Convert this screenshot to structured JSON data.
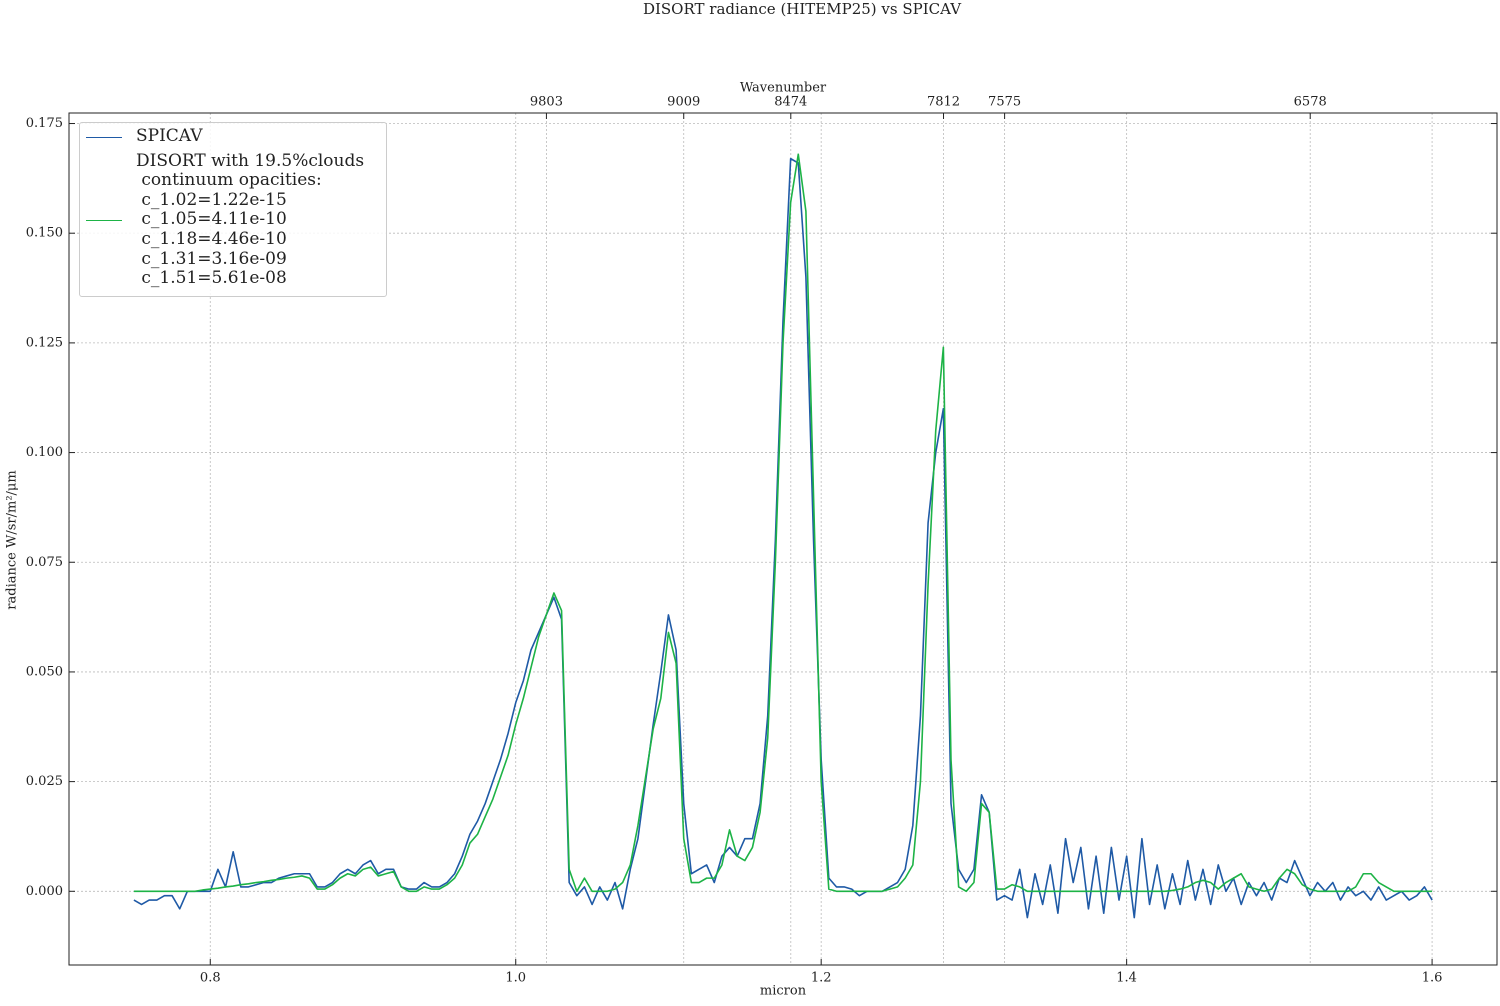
{
  "chart_data": {
    "type": "line",
    "title": "DISORT radiance (HITEMP25) vs SPICAV",
    "xlabel": "micron",
    "ylabel": "radiance W/sr/m²/μm",
    "x2label": "Wavenumber",
    "xlim": [
      0.7075,
      1.6425
    ],
    "ylim": [
      -0.0168,
      0.1774
    ],
    "xticks": [
      0.8,
      {
        "value": 1.0,
        "label": "1.0"
      },
      1.2,
      1.4,
      1.6
    ],
    "x2ticks": [
      {
        "value": 1.0201,
        "label": "9803"
      },
      {
        "value": 1.11,
        "label": "9009"
      },
      {
        "value": 1.1801,
        "label": "8474"
      },
      {
        "value": 1.2801,
        "label": "7812"
      },
      {
        "value": 1.3201,
        "label": "7575"
      },
      {
        "value": 1.5202,
        "label": "6578"
      }
    ],
    "yticks": [
      {
        "value": 0,
        "label": "0.000"
      },
      {
        "value": 0.025,
        "label": "0.025"
      },
      {
        "value": 0.05,
        "label": "0.050"
      },
      {
        "value": 0.075,
        "label": "0.075"
      },
      {
        "value": 0.1,
        "label": "0.100"
      },
      {
        "value": 0.125,
        "label": "0.125"
      },
      {
        "value": 0.15,
        "label": "0.150"
      },
      {
        "value": 0.175,
        "label": "0.175"
      }
    ],
    "grid": true,
    "legend": "upper left",
    "x": [
      0.75,
      0.755,
      0.76,
      0.765,
      0.77,
      0.775,
      0.78,
      0.785,
      0.79,
      0.795,
      0.8,
      0.805,
      0.81,
      0.815,
      0.82,
      0.825,
      0.83,
      0.835,
      0.84,
      0.845,
      0.85,
      0.855,
      0.86,
      0.865,
      0.87,
      0.875,
      0.88,
      0.885,
      0.89,
      0.895,
      0.9,
      0.905,
      0.91,
      0.915,
      0.92,
      0.925,
      0.93,
      0.935,
      0.94,
      0.945,
      0.95,
      0.955,
      0.96,
      0.965,
      0.97,
      0.975,
      0.98,
      0.985,
      0.99,
      0.995,
      1.0,
      1.005,
      1.01,
      1.015,
      1.02,
      1.025,
      1.03,
      1.035,
      1.04,
      1.045,
      1.05,
      1.055,
      1.06,
      1.065,
      1.07,
      1.075,
      1.08,
      1.085,
      1.09,
      1.095,
      1.1,
      1.105,
      1.11,
      1.115,
      1.12,
      1.125,
      1.13,
      1.135,
      1.14,
      1.145,
      1.15,
      1.155,
      1.16,
      1.165,
      1.17,
      1.175,
      1.18,
      1.185,
      1.19,
      1.195,
      1.2,
      1.205,
      1.21,
      1.215,
      1.22,
      1.225,
      1.23,
      1.235,
      1.24,
      1.245,
      1.25,
      1.255,
      1.26,
      1.265,
      1.27,
      1.275,
      1.28,
      1.285,
      1.29,
      1.295,
      1.3,
      1.305,
      1.31,
      1.315,
      1.32,
      1.325,
      1.33,
      1.335,
      1.34,
      1.345,
      1.35,
      1.355,
      1.36,
      1.365,
      1.37,
      1.375,
      1.38,
      1.385,
      1.39,
      1.395,
      1.4,
      1.405,
      1.41,
      1.415,
      1.42,
      1.425,
      1.43,
      1.435,
      1.44,
      1.445,
      1.45,
      1.455,
      1.46,
      1.465,
      1.47,
      1.475,
      1.48,
      1.485,
      1.49,
      1.495,
      1.5,
      1.505,
      1.51,
      1.515,
      1.52,
      1.525,
      1.53,
      1.535,
      1.54,
      1.545,
      1.55,
      1.555,
      1.56,
      1.565,
      1.57,
      1.575,
      1.58,
      1.585,
      1.59,
      1.595,
      1.6
    ],
    "series": [
      {
        "name": "SPICAV",
        "color": "#1f5aa6",
        "values": [
          -0.002,
          -0.003,
          -0.002,
          -0.002,
          -0.001,
          -0.001,
          -0.004,
          0,
          0,
          0,
          0,
          0.005,
          0.001,
          0.009,
          0.001,
          0.001,
          0.0015,
          0.002,
          0.002,
          0.003,
          0.0035,
          0.004,
          0.004,
          0.004,
          0.001,
          0.001,
          0.002,
          0.004,
          0.005,
          0.004,
          0.006,
          0.007,
          0.004,
          0.005,
          0.005,
          0.001,
          0.0005,
          0.0005,
          0.002,
          0.001,
          0.001,
          0.002,
          0.004,
          0.008,
          0.013,
          0.016,
          0.02,
          0.025,
          0.03,
          0.036,
          0.043,
          0.048,
          0.055,
          0.059,
          0.063,
          0.067,
          0.062,
          0.002,
          -0.001,
          0.001,
          -0.003,
          0.001,
          -0.002,
          0.002,
          -0.004,
          0.005,
          0.012,
          0.025,
          0.038,
          0.05,
          0.063,
          0.055,
          0.02,
          0.004,
          0.005,
          0.006,
          0.002,
          0.008,
          0.01,
          0.008,
          0.012,
          0.012,
          0.02,
          0.04,
          0.08,
          0.13,
          0.167,
          0.166,
          0.14,
          0.08,
          0.03,
          0.003,
          0.001,
          0.001,
          0.0005,
          -0.001,
          0,
          0,
          0,
          0.001,
          0.002,
          0.005,
          0.015,
          0.04,
          0.084,
          0.1,
          0.11,
          0.02,
          0.005,
          0.002,
          0.005,
          0.022,
          0.018,
          -0.002,
          -0.001,
          -0.002,
          0.005,
          -0.006,
          0.004,
          -0.003,
          0.006,
          -0.005,
          0.012,
          0.002,
          0.01,
          -0.004,
          0.008,
          -0.005,
          0.01,
          -0.002,
          0.008,
          -0.006,
          0.012,
          -0.003,
          0.006,
          -0.004,
          0.004,
          -0.003,
          0.007,
          -0.002,
          0.005,
          -0.003,
          0.006,
          0,
          0.003,
          -0.003,
          0.002,
          -0.001,
          0.002,
          -0.002,
          0.003,
          0.002,
          0.007,
          0.003,
          -0.001,
          0.002,
          0,
          0.002,
          -0.002,
          0.001,
          -0.001,
          0,
          -0.002,
          0.001,
          -0.002,
          -0.001,
          0,
          -0.002,
          -0.001,
          0.001,
          -0.002
        ]
      },
      {
        "name": "DISORT with 19.5%clouds\n continuum opacities:\n c_1.02=1.22e-15\n c_1.05=4.11e-10\n c_1.18=4.46e-10\n c_1.31=3.16e-09\n c_1.51=5.61e-08",
        "color": "#1db346",
        "values": [
          0,
          0,
          0,
          0,
          0,
          0,
          0,
          0,
          0,
          0.0003,
          0.0005,
          0.0007,
          0.001,
          0.0012,
          0.0015,
          0.0017,
          0.002,
          0.0022,
          0.0025,
          0.0027,
          0.003,
          0.0032,
          0.0035,
          0.003,
          0.0005,
          0.0005,
          0.0015,
          0.003,
          0.004,
          0.0035,
          0.005,
          0.0055,
          0.0035,
          0.004,
          0.0045,
          0.001,
          0,
          0,
          0.001,
          0.0005,
          0.0005,
          0.0015,
          0.003,
          0.006,
          0.011,
          0.013,
          0.017,
          0.021,
          0.026,
          0.031,
          0.038,
          0.044,
          0.051,
          0.058,
          0.063,
          0.068,
          0.064,
          0.005,
          0,
          0.003,
          0,
          0,
          0,
          0.0005,
          0.002,
          0.006,
          0.015,
          0.026,
          0.037,
          0.044,
          0.059,
          0.052,
          0.012,
          0.002,
          0.002,
          0.003,
          0.003,
          0.006,
          0.014,
          0.008,
          0.007,
          0.01,
          0.018,
          0.035,
          0.075,
          0.125,
          0.157,
          0.168,
          0.155,
          0.09,
          0.025,
          0.0005,
          0,
          0,
          0,
          0,
          0,
          0,
          0,
          0.0005,
          0.001,
          0.003,
          0.006,
          0.025,
          0.07,
          0.105,
          0.124,
          0.03,
          0.001,
          0,
          0.002,
          0.02,
          0.018,
          0.0005,
          0.0005,
          0.0015,
          0.001,
          0,
          0,
          0,
          0,
          0,
          0,
          0,
          0,
          0,
          0,
          0,
          0,
          0,
          0,
          0,
          0,
          0,
          0,
          0,
          0.0002,
          0.0005,
          0.001,
          0.002,
          0.0025,
          0.002,
          0.0005,
          0.002,
          0.003,
          0.004,
          0.001,
          0.0005,
          0,
          0.0005,
          0.003,
          0.005,
          0.004,
          0.0015,
          0.0005,
          0,
          0,
          0,
          0,
          0,
          0.001,
          0.004,
          0.004,
          0.002,
          0.001,
          0,
          0,
          0,
          0,
          0,
          0
        ]
      }
    ]
  }
}
